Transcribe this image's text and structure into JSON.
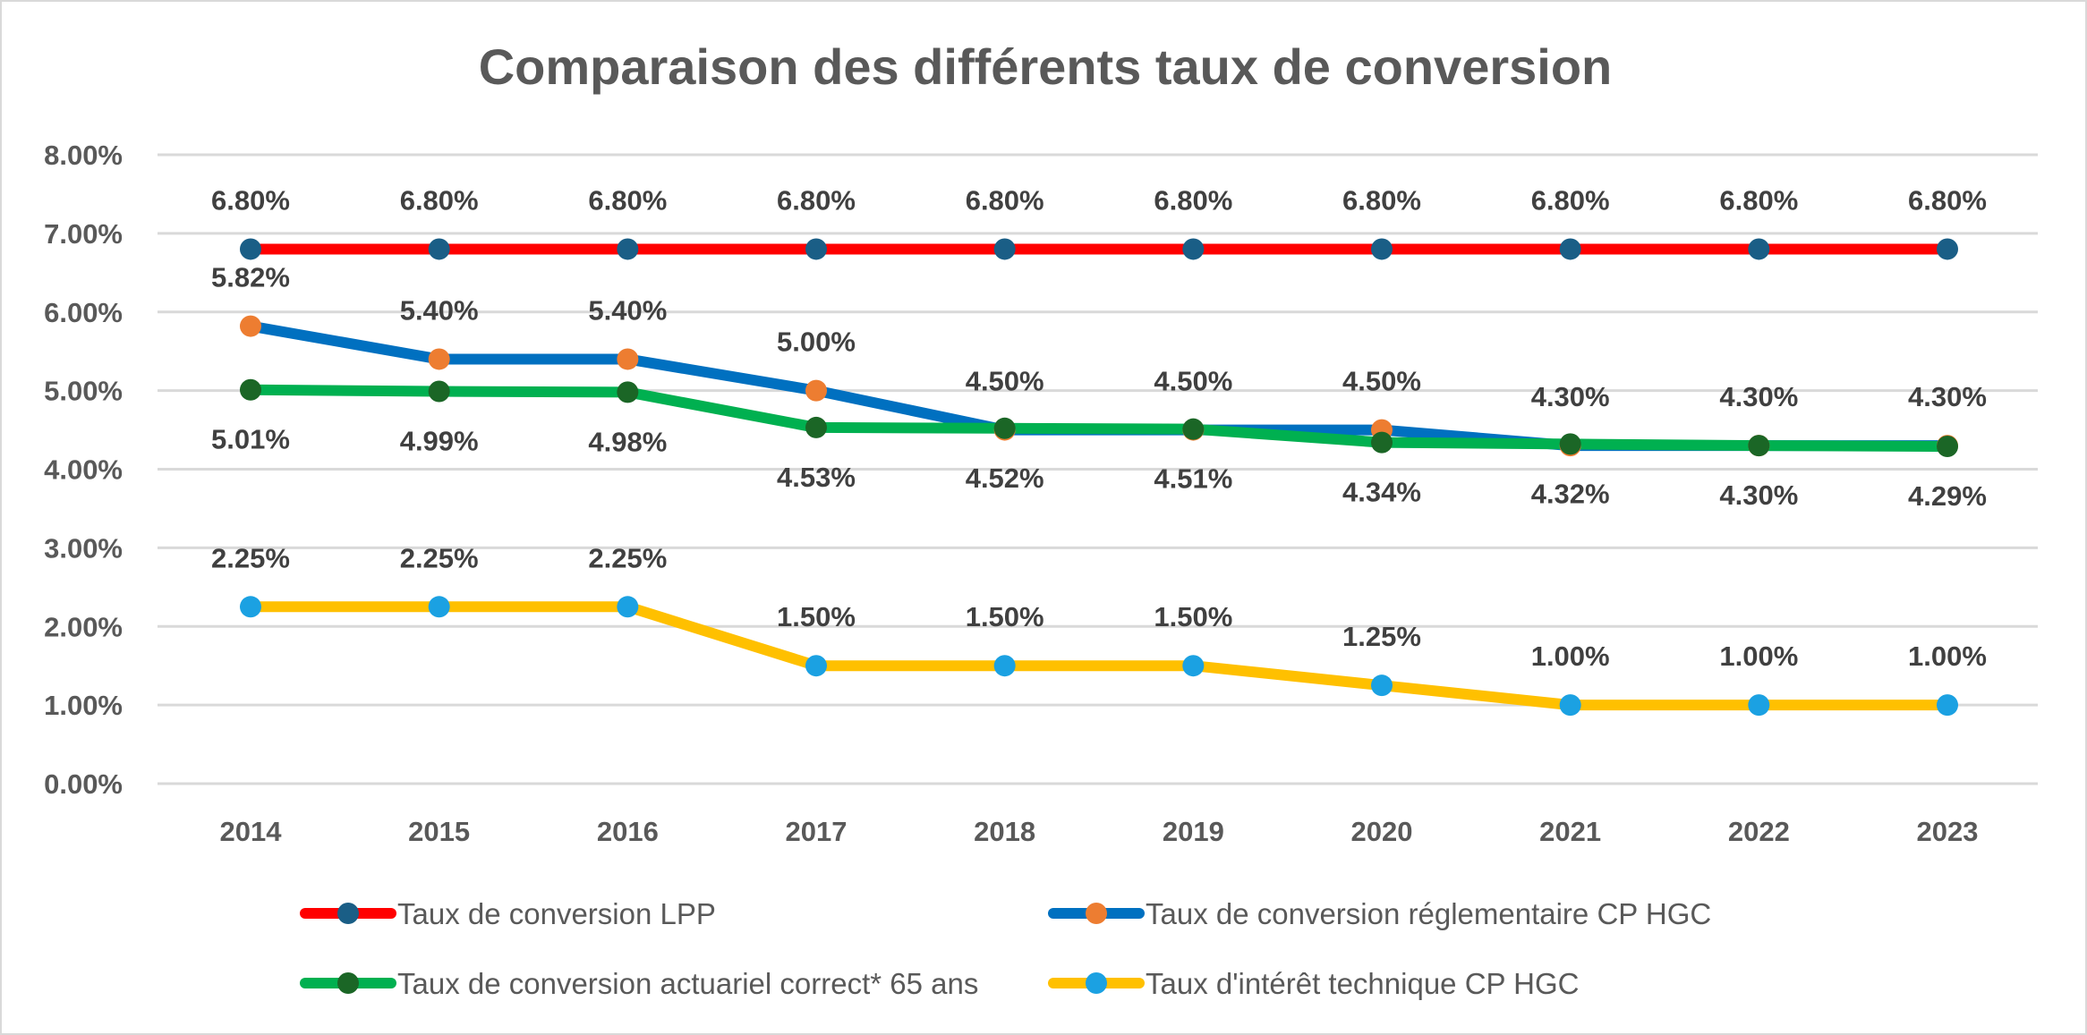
{
  "chart_data": {
    "type": "line",
    "title": "Comparaison des différents taux de conversion",
    "xlabel": "",
    "ylabel": "",
    "x": [
      "2014",
      "2015",
      "2016",
      "2017",
      "2018",
      "2019",
      "2020",
      "2021",
      "2022",
      "2023"
    ],
    "ylim": [
      0,
      8
    ],
    "yticks": [
      "0.00%",
      "1.00%",
      "2.00%",
      "3.00%",
      "4.00%",
      "5.00%",
      "6.00%",
      "7.00%",
      "8.00%"
    ],
    "grid": true,
    "legend_position": "bottom",
    "series": [
      {
        "name": "Taux de conversion LPP",
        "line_color": "#FF0000",
        "marker_color": "#1A5E86",
        "label_pos": "above",
        "values": [
          6.8,
          6.8,
          6.8,
          6.8,
          6.8,
          6.8,
          6.8,
          6.8,
          6.8,
          6.8
        ],
        "labels": [
          "6.80%",
          "6.80%",
          "6.80%",
          "6.80%",
          "6.80%",
          "6.80%",
          "6.80%",
          "6.80%",
          "6.80%",
          "6.80%"
        ]
      },
      {
        "name": "Taux de conversion réglementaire CP HGC",
        "line_color": "#0070C0",
        "marker_color": "#ED7D31",
        "label_pos": "above",
        "values": [
          5.82,
          5.4,
          5.4,
          5.0,
          4.5,
          4.5,
          4.5,
          4.3,
          4.3,
          4.3
        ],
        "labels": [
          "5.82%",
          "5.40%",
          "5.40%",
          "5.00%",
          "4.50%",
          "4.50%",
          "4.50%",
          "4.30%",
          "4.30%",
          "4.30%"
        ]
      },
      {
        "name": "Taux de conversion actuariel correct* 65 ans",
        "line_color": "#00B050",
        "marker_color": "#1B6626",
        "label_pos": "below",
        "values": [
          5.01,
          4.99,
          4.98,
          4.53,
          4.52,
          4.51,
          4.34,
          4.32,
          4.3,
          4.29
        ],
        "labels": [
          "5.01%",
          "4.99%",
          "4.98%",
          "4.53%",
          "4.52%",
          "4.51%",
          "4.34%",
          "4.32%",
          "4.30%",
          "4.29%"
        ]
      },
      {
        "name": "Taux d'intérêt technique CP HGC",
        "line_color": "#FFC000",
        "marker_color": "#1BA1E2",
        "label_pos": "above",
        "values": [
          2.25,
          2.25,
          2.25,
          1.5,
          1.5,
          1.5,
          1.25,
          1.0,
          1.0,
          1.0
        ],
        "labels": [
          "2.25%",
          "2.25%",
          "2.25%",
          "1.50%",
          "1.50%",
          "1.50%",
          "1.25%",
          "1.00%",
          "1.00%",
          "1.00%"
        ]
      }
    ]
  }
}
